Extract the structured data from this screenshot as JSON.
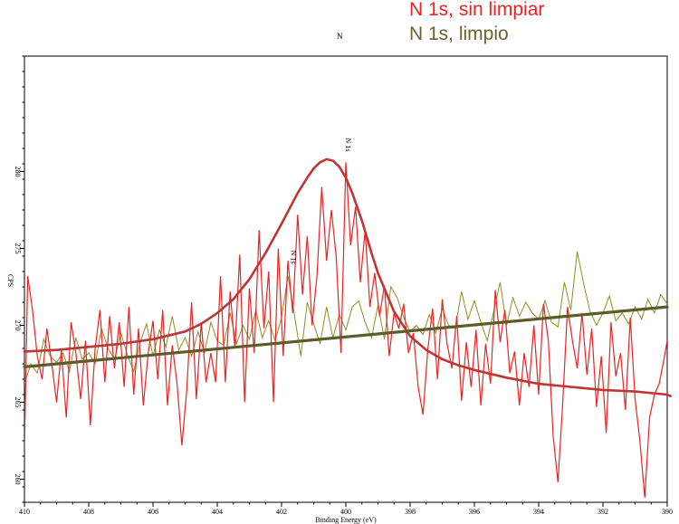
{
  "legend": {
    "series_red": "N 1s, sin limpiar",
    "series_olive": "N 1s, limpio",
    "marker": "N"
  },
  "colors": {
    "raw": "#ee2222",
    "clean": "#8e8e22",
    "peak_fit": "#c03535",
    "background_fit": "#5c5c28"
  },
  "chart_data": {
    "type": "line",
    "title": "",
    "xlabel": "Binding Energy (eV)",
    "ylabel": "CPS",
    "x_reversed": true,
    "xlim": [
      410,
      390
    ],
    "ylim": [
      258.5,
      287.5
    ],
    "x_ticks": [
      410,
      408,
      406,
      404,
      402,
      400,
      398,
      396,
      394,
      392,
      390
    ],
    "y_ticks": [
      260,
      265,
      270,
      275,
      280
    ],
    "annotations": [
      {
        "text": "N 1s",
        "x": 400.0,
        "y": 281.3,
        "rotation": 90
      },
      {
        "text": "N 1s",
        "x": 401.7,
        "y": 274.0,
        "rotation": 90
      }
    ],
    "series": [
      {
        "values": [
          [
            410.0,
            262.0
          ],
          [
            409.9,
            273.2
          ],
          [
            409.75,
            271.0
          ],
          [
            409.6,
            268.0
          ],
          [
            409.45,
            266.5
          ],
          [
            409.3,
            269.8
          ],
          [
            409.15,
            267.5
          ],
          [
            409.0,
            265.0
          ],
          [
            408.85,
            268.4
          ],
          [
            408.7,
            264.0
          ],
          [
            408.55,
            270.2
          ],
          [
            408.4,
            268.2
          ],
          [
            408.25,
            265.2
          ],
          [
            408.1,
            269.0
          ],
          [
            407.95,
            263.5
          ],
          [
            407.8,
            268.5
          ],
          [
            407.65,
            271.0
          ],
          [
            407.5,
            266.3
          ],
          [
            407.35,
            270.6
          ],
          [
            407.2,
            267.2
          ],
          [
            407.05,
            270.2
          ],
          [
            406.9,
            266.0
          ],
          [
            406.75,
            271.2
          ],
          [
            406.6,
            265.5
          ],
          [
            406.45,
            269.8
          ],
          [
            406.3,
            264.8
          ],
          [
            406.15,
            268.2
          ],
          [
            406.0,
            270.3
          ],
          [
            405.85,
            266.5
          ],
          [
            405.7,
            271.0
          ],
          [
            405.55,
            264.8
          ],
          [
            405.4,
            268.7
          ],
          [
            405.25,
            266.2
          ],
          [
            405.1,
            262.2
          ],
          [
            404.95,
            265.8
          ],
          [
            404.8,
            271.5
          ],
          [
            404.65,
            265.2
          ],
          [
            404.5,
            270.2
          ],
          [
            404.35,
            266.3
          ],
          [
            404.2,
            268.2
          ],
          [
            404.05,
            266.3
          ],
          [
            403.9,
            273.2
          ],
          [
            403.75,
            266.3
          ],
          [
            403.6,
            272.2
          ],
          [
            403.45,
            268.5
          ],
          [
            403.3,
            274.6
          ],
          [
            403.15,
            265.0
          ],
          [
            403.0,
            272.4
          ],
          [
            402.85,
            268.2
          ],
          [
            402.7,
            276.2
          ],
          [
            402.55,
            269.8
          ],
          [
            402.4,
            273.5
          ],
          [
            402.25,
            265.0
          ],
          [
            402.1,
            275.0
          ],
          [
            401.95,
            268.0
          ],
          [
            401.8,
            274.2
          ],
          [
            401.65,
            270.8
          ],
          [
            401.5,
            277.2
          ],
          [
            401.35,
            272.0
          ],
          [
            401.2,
            275.8
          ],
          [
            401.05,
            270.0
          ],
          [
            400.9,
            273.2
          ],
          [
            400.75,
            279.0
          ],
          [
            400.6,
            274.2
          ],
          [
            400.45,
            277.5
          ],
          [
            400.3,
            274.5
          ],
          [
            400.15,
            268.2
          ],
          [
            400.0,
            280.6
          ],
          [
            399.85,
            275.2
          ],
          [
            399.7,
            277.7
          ],
          [
            399.55,
            272.8
          ],
          [
            399.4,
            276.2
          ],
          [
            399.25,
            271.2
          ],
          [
            399.1,
            273.4
          ],
          [
            398.95,
            270.6
          ],
          [
            398.8,
            272.6
          ],
          [
            398.65,
            268.0
          ],
          [
            398.5,
            270.8
          ],
          [
            398.35,
            269.8
          ],
          [
            398.2,
            271.4
          ],
          [
            398.05,
            268.2
          ],
          [
            397.9,
            269.5
          ],
          [
            397.75,
            266.0
          ],
          [
            397.6,
            264.2
          ],
          [
            397.45,
            268.4
          ],
          [
            397.3,
            271.1
          ],
          [
            397.15,
            266.5
          ],
          [
            397.0,
            271.7
          ],
          [
            396.85,
            268.8
          ],
          [
            396.7,
            267.2
          ],
          [
            396.55,
            270.6
          ],
          [
            396.4,
            265.1
          ],
          [
            396.25,
            268.9
          ],
          [
            396.1,
            266.0
          ],
          [
            395.95,
            269.7
          ],
          [
            395.8,
            264.8
          ],
          [
            395.65,
            268.8
          ],
          [
            395.5,
            266.2
          ],
          [
            395.35,
            272.3
          ],
          [
            395.2,
            268.9
          ],
          [
            395.05,
            271.0
          ],
          [
            394.9,
            266.9
          ],
          [
            394.75,
            268.3
          ],
          [
            394.6,
            264.8
          ],
          [
            394.45,
            268.2
          ],
          [
            394.3,
            266.0
          ],
          [
            394.15,
            270.0
          ],
          [
            394.0,
            265.5
          ],
          [
            393.85,
            271.4
          ],
          [
            393.7,
            269.0
          ],
          [
            393.55,
            262.8
          ],
          [
            393.4,
            259.8
          ],
          [
            393.25,
            265.0
          ],
          [
            393.1,
            271.2
          ],
          [
            392.95,
            269.0
          ],
          [
            392.8,
            267.2
          ],
          [
            392.65,
            270.8
          ],
          [
            392.5,
            266.8
          ],
          [
            392.35,
            269.8
          ],
          [
            392.2,
            264.7
          ],
          [
            392.05,
            268.0
          ],
          [
            391.9,
            263.0
          ],
          [
            391.75,
            270.2
          ],
          [
            391.6,
            266.7
          ],
          [
            391.45,
            268.2
          ],
          [
            391.3,
            264.5
          ],
          [
            391.15,
            270.5
          ],
          [
            391.0,
            265.2
          ],
          [
            390.85,
            262.5
          ],
          [
            390.7,
            258.8
          ],
          [
            390.55,
            264.0
          ],
          [
            390.4,
            265.5
          ],
          [
            390.25,
            266.2
          ],
          [
            390.1,
            267.8
          ],
          [
            390.0,
            269.0
          ]
        ]
      },
      {
        "values": [
          [
            410.0,
            266.2
          ],
          [
            409.8,
            267.5
          ],
          [
            409.6,
            266.9
          ],
          [
            409.4,
            269.1
          ],
          [
            409.2,
            268.0
          ],
          [
            409.0,
            267.6
          ],
          [
            408.8,
            268.2
          ],
          [
            408.6,
            267.0
          ],
          [
            408.4,
            269.2
          ],
          [
            408.2,
            267.8
          ],
          [
            408.0,
            268.2
          ],
          [
            407.8,
            267.5
          ],
          [
            407.6,
            269.8
          ],
          [
            407.4,
            268.5
          ],
          [
            407.2,
            267.8
          ],
          [
            407.0,
            269.5
          ],
          [
            406.8,
            268.1
          ],
          [
            406.6,
            267.0
          ],
          [
            406.4,
            268.9
          ],
          [
            406.2,
            270.1
          ],
          [
            406.0,
            268.0
          ],
          [
            405.8,
            269.7
          ],
          [
            405.6,
            268.6
          ],
          [
            405.4,
            270.6
          ],
          [
            405.2,
            268.4
          ],
          [
            405.0,
            269.2
          ],
          [
            404.8,
            268.0
          ],
          [
            404.6,
            269.6
          ],
          [
            404.4,
            268.2
          ],
          [
            404.2,
            270.2
          ],
          [
            404.0,
            269.0
          ],
          [
            403.8,
            268.7
          ],
          [
            403.6,
            270.8
          ],
          [
            403.4,
            268.8
          ],
          [
            403.2,
            270.0
          ],
          [
            403.0,
            269.1
          ],
          [
            402.8,
            271.0
          ],
          [
            402.6,
            269.2
          ],
          [
            402.4,
            270.3
          ],
          [
            402.2,
            269.0
          ],
          [
            402.0,
            270.5
          ],
          [
            401.8,
            273.2
          ],
          [
            401.6,
            270.7
          ],
          [
            401.4,
            268.0
          ],
          [
            401.2,
            271.5
          ],
          [
            401.0,
            270.1
          ],
          [
            400.8,
            268.8
          ],
          [
            400.6,
            271.2
          ],
          [
            400.4,
            269.2
          ],
          [
            400.2,
            270.7
          ],
          [
            400.0,
            269.7
          ],
          [
            399.8,
            271.2
          ],
          [
            399.6,
            271.6
          ],
          [
            399.4,
            270.2
          ],
          [
            399.2,
            269.2
          ],
          [
            399.0,
            271.3
          ],
          [
            398.8,
            269.1
          ],
          [
            398.6,
            272.5
          ],
          [
            398.4,
            271.8
          ],
          [
            398.2,
            270.5
          ],
          [
            398.0,
            269.6
          ],
          [
            397.8,
            270.0
          ],
          [
            397.6,
            269.4
          ],
          [
            397.4,
            270.7
          ],
          [
            397.2,
            269.5
          ],
          [
            397.0,
            271.1
          ],
          [
            396.8,
            270.0
          ],
          [
            396.6,
            269.8
          ],
          [
            396.4,
            272.2
          ],
          [
            396.2,
            270.4
          ],
          [
            396.0,
            271.6
          ],
          [
            395.8,
            270.2
          ],
          [
            395.6,
            269.0
          ],
          [
            395.4,
            270.9
          ],
          [
            395.2,
            272.8
          ],
          [
            395.0,
            270.0
          ],
          [
            394.8,
            271.8
          ],
          [
            394.6,
            270.6
          ],
          [
            394.4,
            271.5
          ],
          [
            394.2,
            270.8
          ],
          [
            394.0,
            270.4
          ],
          [
            393.8,
            271.6
          ],
          [
            393.6,
            270.2
          ],
          [
            393.4,
            269.9
          ],
          [
            393.2,
            272.8
          ],
          [
            393.0,
            271.0
          ],
          [
            392.8,
            274.8
          ],
          [
            392.6,
            272.7
          ],
          [
            392.4,
            270.9
          ],
          [
            392.2,
            270.0
          ],
          [
            392.0,
            270.8
          ],
          [
            391.8,
            271.9
          ],
          [
            391.6,
            270.3
          ],
          [
            391.4,
            270.8
          ],
          [
            391.2,
            270.1
          ],
          [
            391.0,
            271.2
          ],
          [
            390.8,
            270.4
          ],
          [
            390.6,
            271.7
          ],
          [
            390.4,
            270.8
          ],
          [
            390.2,
            272.0
          ],
          [
            390.0,
            271.4
          ]
        ]
      },
      {
        "values": [
          [
            410.0,
            268.3
          ],
          [
            409.0,
            268.4
          ],
          [
            408.0,
            268.6
          ],
          [
            407.0,
            268.8
          ],
          [
            406.0,
            269.1
          ],
          [
            405.0,
            269.6
          ],
          [
            404.5,
            270.1
          ],
          [
            404.0,
            270.8
          ],
          [
            403.5,
            271.7
          ],
          [
            403.0,
            273.0
          ],
          [
            402.5,
            274.7
          ],
          [
            402.0,
            276.6
          ],
          [
            401.5,
            278.6
          ],
          [
            401.2,
            279.6
          ],
          [
            401.0,
            280.2
          ],
          [
            400.8,
            280.6
          ],
          [
            400.6,
            280.8
          ],
          [
            400.4,
            280.7
          ],
          [
            400.2,
            280.3
          ],
          [
            400.0,
            279.6
          ],
          [
            399.8,
            278.6
          ],
          [
            399.5,
            276.8
          ],
          [
            399.2,
            274.7
          ],
          [
            399.0,
            273.4
          ],
          [
            398.5,
            270.9
          ],
          [
            398.0,
            269.3
          ],
          [
            397.5,
            268.4
          ],
          [
            397.0,
            267.8
          ],
          [
            396.5,
            267.4
          ],
          [
            396.0,
            267.1
          ],
          [
            395.0,
            266.6
          ],
          [
            394.0,
            266.2
          ],
          [
            393.0,
            266.0
          ],
          [
            392.0,
            265.8
          ],
          [
            391.0,
            265.7
          ],
          [
            390.0,
            265.5
          ],
          [
            389.9,
            265.4
          ]
        ]
      },
      {
        "values": [
          [
            410.0,
            267.3
          ],
          [
            390.0,
            271.2
          ]
        ]
      }
    ]
  }
}
